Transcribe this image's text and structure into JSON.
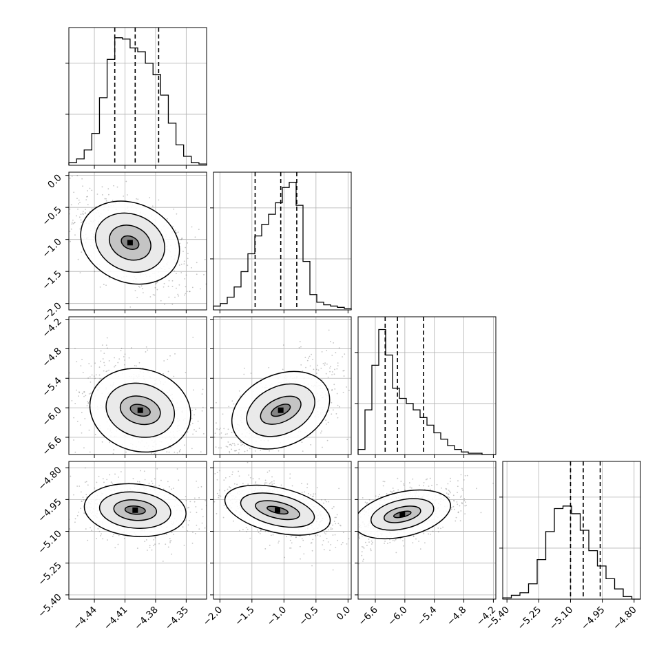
{
  "chart_data": {
    "type": "corner",
    "parameters": [
      {
        "range": [
          -4.465,
          -4.33
        ],
        "ticks": [
          -4.44,
          -4.41,
          -4.38,
          -4.35
        ],
        "tick_labels": [
          "−4.44",
          "−4.41",
          "−4.38",
          "−4.35"
        ],
        "quantiles": [
          -4.42,
          -4.4,
          -4.377
        ],
        "hist": [
          0.02,
          0.05,
          0.12,
          0.25,
          0.53,
          0.83,
          1.0,
          0.99,
          0.92,
          0.89,
          0.8,
          0.71,
          0.55,
          0.33,
          0.16,
          0.07,
          0.02,
          0.01
        ]
      },
      {
        "range": [
          -2.1,
          0.05
        ],
        "ticks": [
          -2.0,
          -1.5,
          -1.0,
          -0.5,
          0.0
        ],
        "tick_labels": [
          "−2.0",
          "−1.5",
          "−1.0",
          "−0.5",
          "0.0"
        ],
        "quantiles": [
          -1.45,
          -1.05,
          -0.8
        ],
        "hist": [
          0.03,
          0.05,
          0.1,
          0.18,
          0.3,
          0.44,
          0.58,
          0.67,
          0.75,
          0.84,
          0.96,
          1.0,
          0.82,
          0.38,
          0.12,
          0.06,
          0.04,
          0.03,
          0.02,
          0.01
        ]
      },
      {
        "range": [
          -6.95,
          -4.15
        ],
        "ticks": [
          -6.6,
          -6.0,
          -5.4,
          -4.8,
          -4.2
        ],
        "tick_labels": [
          "−6.6",
          "−6.0",
          "−5.4",
          "−4.8",
          "−4.2"
        ],
        "quantiles": [
          -6.4,
          -6.15,
          -5.62
        ],
        "hist": [
          0.04,
          0.35,
          0.7,
          0.98,
          0.78,
          0.52,
          0.44,
          0.4,
          0.35,
          0.29,
          0.23,
          0.17,
          0.12,
          0.07,
          0.04,
          0.02,
          0.01,
          0.01,
          0.0,
          0.0
        ]
      },
      {
        "range": [
          -5.42,
          -4.77
        ],
        "ticks": [
          -5.4,
          -5.25,
          -5.1,
          -4.95,
          -4.8
        ],
        "tick_labels": [
          "−5.40",
          "−5.25",
          "−5.10",
          "−4.95",
          "−4.80"
        ],
        "quantiles": [
          -5.1,
          -5.04,
          -4.96
        ],
        "hist": [
          0.01,
          0.03,
          0.05,
          0.12,
          0.31,
          0.53,
          0.71,
          0.73,
          0.67,
          0.54,
          0.38,
          0.26,
          0.16,
          0.08,
          0.02,
          0.0
        ]
      }
    ],
    "axes_2d": [
      {
        "row": 1,
        "col": 0,
        "center": [
          -4.405,
          -1.05
        ],
        "spread": [
          0.025,
          0.35
        ],
        "corr": -0.55,
        "contour_rel": [
          [
            1.0,
            0.95
          ],
          [
            0.7,
            0.68
          ],
          [
            0.42,
            0.4
          ],
          [
            0.18,
            0.15
          ]
        ]
      },
      {
        "row": 2,
        "col": 0,
        "center": [
          -4.395,
          -6.05
        ],
        "spread": [
          0.025,
          0.45
        ],
        "corr": -0.35,
        "contour_rel": [
          [
            1.0,
            0.9
          ],
          [
            0.68,
            0.58
          ],
          [
            0.4,
            0.3
          ],
          [
            0.2,
            0.12
          ]
        ]
      },
      {
        "row": 2,
        "col": 1,
        "center": [
          -1.05,
          -6.05
        ],
        "spread": [
          0.4,
          0.45
        ],
        "corr": 0.6,
        "contour_rel": [
          [
            1.0,
            0.9
          ],
          [
            0.7,
            0.6
          ],
          [
            0.42,
            0.3
          ],
          [
            0.2,
            0.12
          ]
        ]
      },
      {
        "row": 3,
        "col": 0,
        "center": [
          -4.4,
          -5.0
        ],
        "spread": [
          0.025,
          0.06
        ],
        "corr": -0.2,
        "contour_rel": [
          [
            1.0,
            0.9
          ],
          [
            0.7,
            0.62
          ],
          [
            0.42,
            0.35
          ],
          [
            0.2,
            0.14
          ]
        ]
      },
      {
        "row": 3,
        "col": 1,
        "center": [
          -1.1,
          -5.0
        ],
        "spread": [
          0.42,
          0.06
        ],
        "corr": -0.55,
        "contour_rel": [
          [
            1.0,
            0.88
          ],
          [
            0.7,
            0.6
          ],
          [
            0.42,
            0.32
          ],
          [
            0.2,
            0.12
          ]
        ]
      },
      {
        "row": 3,
        "col": 2,
        "center": [
          -6.05,
          -5.02
        ],
        "spread": [
          0.5,
          0.06
        ],
        "corr": 0.5,
        "contour_rel": [
          [
            1.0,
            0.85
          ],
          [
            0.65,
            0.55
          ],
          [
            0.38,
            0.28
          ],
          [
            0.18,
            0.1
          ]
        ]
      }
    ],
    "grid": true,
    "xlabel": "",
    "ylabel": ""
  }
}
